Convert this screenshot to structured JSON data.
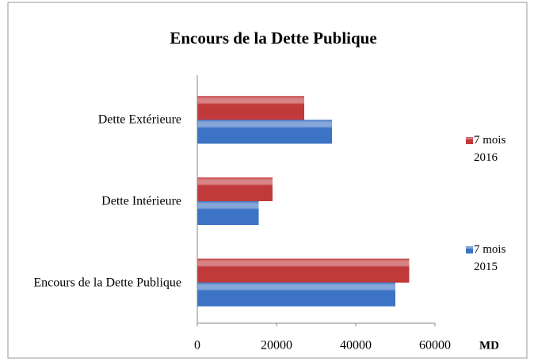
{
  "chart_data": {
    "type": "bar",
    "orientation": "horizontal",
    "title": "Encours de la Dette Publique",
    "categories": [
      "Dette Extérieure",
      "Dette Intérieure",
      "Encours de la Dette Publique"
    ],
    "series": [
      {
        "name": "7 mois 2016",
        "color": "#c0393b",
        "values": [
          27000,
          19000,
          53500
        ]
      },
      {
        "name": "7 mois 2015",
        "color": "#3d73c4",
        "values": [
          34000,
          15500,
          50000
        ]
      }
    ],
    "xlabel": "MD",
    "xlim": [
      0,
      60000
    ],
    "xticks": [
      0,
      20000,
      40000,
      60000
    ],
    "grid": false,
    "legend": "right"
  }
}
